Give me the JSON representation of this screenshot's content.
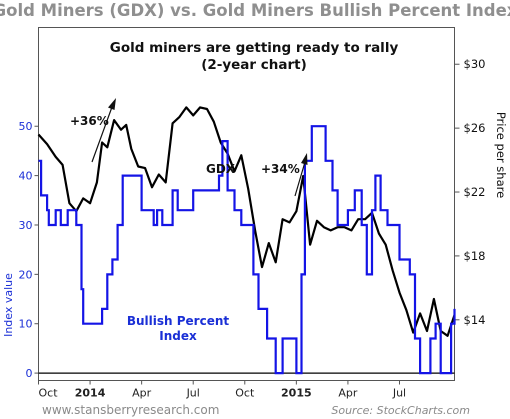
{
  "title": "Gold Miners (GDX) vs. Gold Miners Bullish Percent Index",
  "inner_title_line1": "Gold miners are getting ready to rally",
  "inner_title_line2": "(2-year chart)",
  "footer_left": "www.stansberryresearch.com",
  "footer_right": "Source: StockCharts.com",
  "colors": {
    "gdx": "#000000",
    "bpi": "#1414e6",
    "title": "#8f8f8f",
    "left_axis": "#1a2fd6"
  },
  "chart_data": {
    "type": "line",
    "x_label": "",
    "x_ticks": [
      {
        "label": "Oct",
        "bold": false,
        "t": 0
      },
      {
        "label": "2014",
        "bold": true,
        "t": 3
      },
      {
        "label": "Apr",
        "bold": false,
        "t": 6
      },
      {
        "label": "Jul",
        "bold": false,
        "t": 9
      },
      {
        "label": "Oct",
        "bold": false,
        "t": 12
      },
      {
        "label": "2015",
        "bold": true,
        "t": 15
      },
      {
        "label": "Apr",
        "bold": false,
        "t": 18
      },
      {
        "label": "Jul",
        "bold": false,
        "t": 21
      }
    ],
    "x_range_months": [
      0,
      24.2
    ],
    "right_axis": {
      "label": "Price per share",
      "ticks": [
        "$14",
        "$18",
        "$22",
        "$26",
        "$30"
      ],
      "values": [
        14,
        18,
        22,
        26,
        30
      ],
      "range": [
        10.2,
        32.3
      ]
    },
    "left_axis": {
      "label": "Index value",
      "ticks": [
        "0",
        "10",
        "20",
        "30",
        "40",
        "50"
      ],
      "values": [
        0,
        10,
        20,
        30,
        40,
        50
      ],
      "range": [
        -1.5,
        70
      ]
    },
    "series": [
      {
        "name": "GDX",
        "axis": "right",
        "label": "GDX",
        "t": [
          0,
          0.5,
          1,
          1.4,
          1.8,
          2.2,
          2.6,
          3,
          3.4,
          3.7,
          4,
          4.4,
          4.8,
          5.1,
          5.4,
          5.8,
          6.2,
          6.6,
          7,
          7.4,
          7.8,
          8.2,
          8.6,
          9,
          9.4,
          9.8,
          10.2,
          10.6,
          11,
          11.4,
          11.8,
          12.2,
          12.6,
          13,
          13.4,
          13.8,
          14.2,
          14.6,
          15,
          15.4,
          15.8,
          16.2,
          16.6,
          17,
          17.4,
          17.8,
          18.2,
          18.6,
          19,
          19.4,
          19.8,
          20.2,
          20.6,
          21,
          21.4,
          21.8,
          22.2,
          22.6,
          23,
          23.4,
          23.8,
          24.2
        ],
        "values": [
          25.6,
          25.0,
          24.2,
          23.7,
          21.3,
          20.8,
          21.6,
          21.3,
          22.6,
          25.1,
          24.8,
          26.5,
          25.9,
          26.2,
          24.7,
          23.6,
          23.5,
          22.3,
          23.1,
          22.6,
          26.3,
          26.7,
          27.3,
          26.8,
          27.3,
          27.2,
          26.4,
          25.1,
          24.4,
          23.3,
          24.3,
          22.2,
          19.6,
          17.3,
          18.8,
          17.6,
          20.3,
          20.1,
          20.8,
          23.0,
          18.7,
          20.2,
          19.8,
          19.6,
          19.8,
          19.8,
          19.6,
          20.3,
          20.3,
          20.7,
          19.4,
          18.7,
          17.1,
          15.7,
          14.6,
          13.2,
          14.4,
          13.3,
          15.3,
          13.3,
          13.0,
          14.3
        ]
      },
      {
        "name": "Bullish Percent Index",
        "axis": "left",
        "label_line1": "Bullish Percent",
        "label_line2": "Index",
        "t": [
          0,
          0.15,
          0.5,
          0.6,
          1.0,
          1.3,
          1.7,
          2.2,
          2.5,
          2.6,
          2.9,
          3.4,
          3.7,
          4.0,
          4.3,
          4.6,
          4.9,
          5.2,
          5.5,
          6.0,
          6.7,
          6.9,
          7.2,
          7.5,
          7.8,
          8.1,
          8.4,
          9.0,
          9.5,
          10.0,
          10.3,
          10.5,
          10.7,
          11.0,
          11.4,
          11.8,
          12.2,
          12.5,
          12.8,
          13.3,
          13.8,
          14.2,
          14.5,
          14.8,
          15.0,
          15.3,
          15.5,
          15.9,
          16.3,
          16.7,
          17.1,
          17.4,
          17.7,
          18.0,
          18.4,
          18.8,
          19.1,
          19.4,
          19.6,
          19.9,
          20.3,
          20.7,
          21.0,
          21.3,
          21.6,
          21.9,
          22.2,
          22.5,
          22.8,
          23.1,
          23.4,
          23.7,
          24.0,
          24.2
        ],
        "values": [
          43,
          36,
          33,
          30,
          33,
          30,
          33,
          30,
          17,
          10,
          10,
          10,
          13,
          20,
          23,
          30,
          40,
          40,
          40,
          33,
          30,
          33,
          30,
          30,
          37,
          33,
          33,
          37,
          37,
          37,
          37,
          40,
          47,
          37,
          33,
          30,
          30,
          20,
          13,
          7,
          0,
          7,
          7,
          7,
          0,
          20,
          43,
          50,
          50,
          43,
          37,
          30,
          30,
          33,
          37,
          30,
          20,
          33,
          40,
          33,
          30,
          30,
          23,
          23,
          20,
          7,
          0,
          0,
          7,
          10,
          0,
          0,
          10,
          13
        ]
      }
    ],
    "annotations": [
      {
        "text": "+36%"
      },
      {
        "text": "+34%"
      }
    ]
  }
}
